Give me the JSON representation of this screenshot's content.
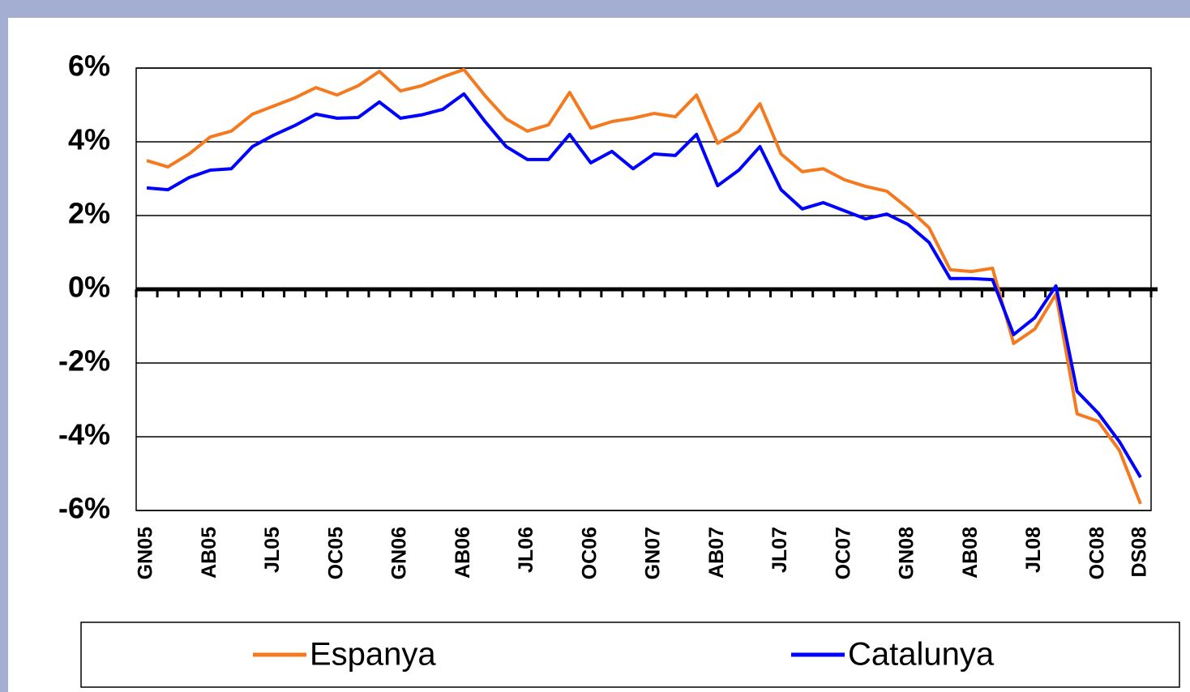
{
  "chart_data": {
    "type": "line",
    "categories": [
      "GN05",
      null,
      null,
      "AB05",
      null,
      null,
      "JL05",
      null,
      null,
      "OC05",
      null,
      null,
      "GN06",
      null,
      null,
      "AB06",
      null,
      null,
      "JL06",
      null,
      null,
      "OC06",
      null,
      null,
      "GN07",
      null,
      null,
      "AB07",
      null,
      null,
      "JL07",
      null,
      null,
      "OC07",
      null,
      null,
      "GN08",
      null,
      null,
      "AB08",
      null,
      null,
      "JL08",
      null,
      null,
      "OC08",
      null,
      "DS08"
    ],
    "series": [
      {
        "name": "Espanya",
        "color": "#f47a20",
        "values": [
          3.49,
          3.32,
          3.67,
          4.13,
          4.29,
          4.75,
          4.97,
          5.19,
          5.47,
          5.27,
          5.52,
          5.91,
          5.38,
          5.52,
          5.76,
          5.96,
          5.25,
          4.62,
          4.29,
          4.46,
          5.34,
          4.37,
          4.55,
          4.64,
          4.77,
          4.68,
          5.27,
          3.96,
          4.29,
          5.03,
          3.67,
          3.19,
          3.27,
          2.97,
          2.79,
          2.66,
          2.2,
          1.67,
          0.53,
          0.48,
          0.57,
          -1.47,
          -1.08,
          -0.13,
          -3.38,
          -3.58,
          -4.37,
          -5.82
        ]
      },
      {
        "name": "Catalunya",
        "color": "#0000ff",
        "values": [
          2.75,
          2.7,
          3.03,
          3.23,
          3.27,
          3.87,
          4.18,
          4.44,
          4.75,
          4.64,
          4.66,
          5.08,
          4.64,
          4.73,
          4.88,
          5.3,
          4.55,
          3.87,
          3.52,
          3.52,
          4.2,
          3.43,
          3.74,
          3.27,
          3.67,
          3.63,
          4.2,
          2.81,
          3.23,
          3.87,
          2.7,
          2.18,
          2.35,
          2.13,
          1.91,
          2.04,
          1.76,
          1.27,
          0.29,
          0.29,
          0.26,
          -1.23,
          -0.77,
          0.09,
          -2.77,
          -3.36,
          -4.13,
          -5.1
        ]
      }
    ],
    "ylim": [
      -6,
      6
    ],
    "yticks": [
      {
        "value": -6,
        "label": "-6%"
      },
      {
        "value": -4,
        "label": "-4%"
      },
      {
        "value": -2,
        "label": "-2%"
      },
      {
        "value": 0,
        "label": "0%"
      },
      {
        "value": 2,
        "label": "2%"
      },
      {
        "value": 4,
        "label": "4%"
      },
      {
        "value": 6,
        "label": "6%"
      }
    ],
    "grid": true,
    "legend": "bottom"
  }
}
